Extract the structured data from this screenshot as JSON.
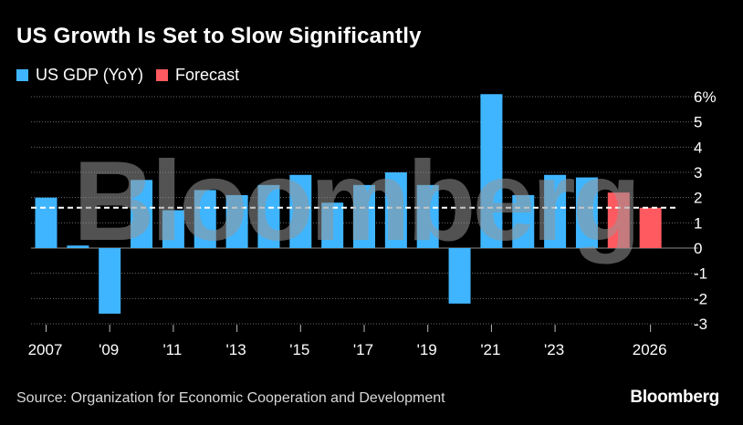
{
  "title": "US Growth Is Set to Slow Significantly",
  "legend": [
    {
      "label": "US GDP (YoY)",
      "color": "#3fb5ff"
    },
    {
      "label": "Forecast",
      "color": "#ff5a5f"
    }
  ],
  "source": "Source: Organization for Economic Cooperation and Development",
  "logo": "Bloomberg",
  "watermark": "Bloomberg",
  "chart_data": {
    "type": "bar",
    "title": "US Growth Is Set to Slow Significantly",
    "xlabel": "",
    "ylabel": "",
    "ylim": [
      -3,
      6
    ],
    "y_tick_labels": [
      "6%",
      "5",
      "4",
      "3",
      "2",
      "1",
      "0",
      "-1",
      "-2",
      "-3"
    ],
    "x_tick_labels": [
      "2007",
      "'09",
      "'11",
      "'13",
      "'15",
      "'17",
      "'19",
      "'21",
      "'23",
      "2026"
    ],
    "categories": [
      "2007",
      "2008",
      "2009",
      "2010",
      "2011",
      "2012",
      "2013",
      "2014",
      "2015",
      "2016",
      "2017",
      "2018",
      "2019",
      "2020",
      "2021",
      "2022",
      "2023",
      "2024",
      "2025",
      "2026"
    ],
    "series": [
      {
        "name": "US GDP (YoY)",
        "color": "#3fb5ff",
        "values": [
          2.0,
          0.1,
          -2.6,
          2.7,
          1.5,
          2.3,
          2.1,
          2.5,
          2.9,
          1.8,
          2.5,
          3.0,
          2.5,
          -2.2,
          6.1,
          2.1,
          2.9,
          2.8,
          null,
          null
        ]
      },
      {
        "name": "Forecast",
        "color": "#ff5a5f",
        "values": [
          null,
          null,
          null,
          null,
          null,
          null,
          null,
          null,
          null,
          null,
          null,
          null,
          null,
          null,
          null,
          null,
          null,
          null,
          2.2,
          1.6
        ]
      }
    ],
    "reference_line": {
      "value": 1.6,
      "style": "dashed",
      "color": "#ffffff"
    },
    "grid": true,
    "legend_position": "top-left"
  }
}
